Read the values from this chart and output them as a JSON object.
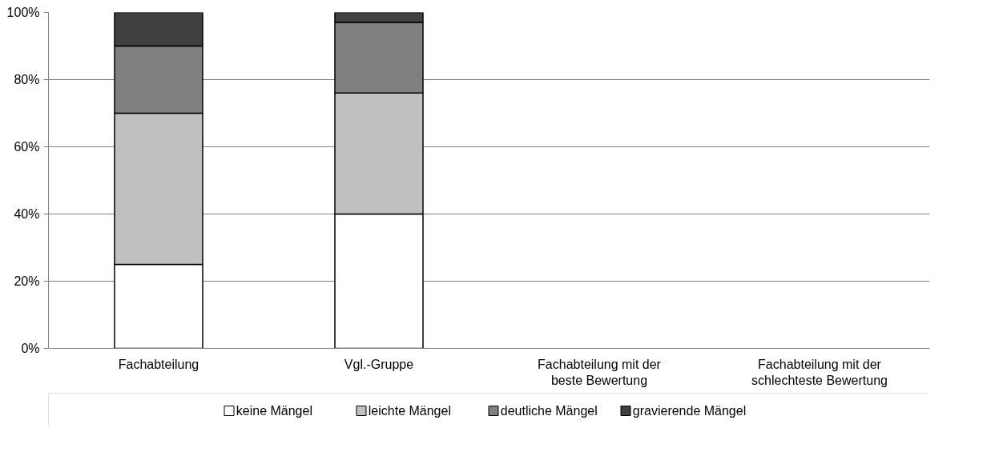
{
  "chart_data": {
    "type": "bar",
    "stacked": true,
    "categories": [
      "Fachabteilung",
      "Vgl.-Gruppe",
      "Fachabteilung mit der beste Bewertung",
      "Fachabteilung mit der schlechteste Bewertung"
    ],
    "series": [
      {
        "name": "keine Mängel",
        "color": "#ffffff",
        "values": [
          25,
          40,
          null,
          null
        ]
      },
      {
        "name": "leichte Mängel",
        "color": "#c0c0c0",
        "values": [
          45,
          36,
          null,
          null
        ]
      },
      {
        "name": "deutliche Mängel",
        "color": "#808080",
        "values": [
          20,
          21,
          null,
          null
        ]
      },
      {
        "name": "gravierende Mängel",
        "color": "#404040",
        "values": [
          10,
          3,
          null,
          null
        ]
      }
    ],
    "ylim": [
      0,
      100
    ],
    "yticks": [
      {
        "value": 0,
        "label": "0%"
      },
      {
        "value": 20,
        "label": "20%"
      },
      {
        "value": 40,
        "label": "40%"
      },
      {
        "value": 60,
        "label": "60%"
      },
      {
        "value": 80,
        "label": "80%"
      },
      {
        "value": 100,
        "label": "100%"
      }
    ],
    "grid": "y",
    "legend": "bottom"
  }
}
